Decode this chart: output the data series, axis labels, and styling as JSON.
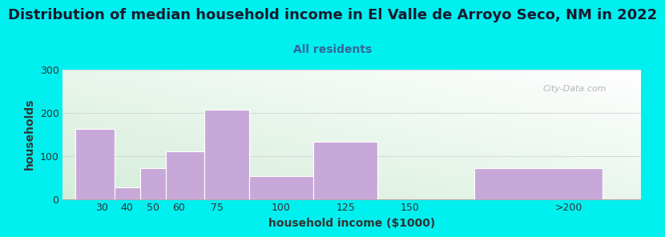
{
  "title": "Distribution of median household income in El Valle de Arroyo Seco, NM in 2022",
  "subtitle": "All residents",
  "xlabel": "household income ($1000)",
  "ylabel": "households",
  "bar_values": [
    163,
    28,
    72,
    110,
    208,
    53,
    132,
    0,
    72
  ],
  "bar_lefts": [
    20,
    35,
    45,
    55,
    70,
    87.5,
    112.5,
    137.5,
    175
  ],
  "bar_widths": [
    15,
    10,
    10,
    15,
    17.5,
    25,
    25,
    37.5,
    50
  ],
  "bar_color": "#c8a8d8",
  "ylim": [
    0,
    300
  ],
  "yticks": [
    0,
    100,
    200,
    300
  ],
  "xlim": [
    15,
    240
  ],
  "xtick_positions": [
    30,
    40,
    50,
    60,
    75,
    100,
    125,
    150,
    212
  ],
  "xtick_labels": [
    "30",
    "40",
    "50",
    "60",
    "75",
    "100",
    "125",
    "150",
    ">200"
  ],
  "bg_color": "#00f0f0",
  "watermark": "City-Data.com",
  "title_fontsize": 13,
  "subtitle_fontsize": 10,
  "label_fontsize": 10
}
